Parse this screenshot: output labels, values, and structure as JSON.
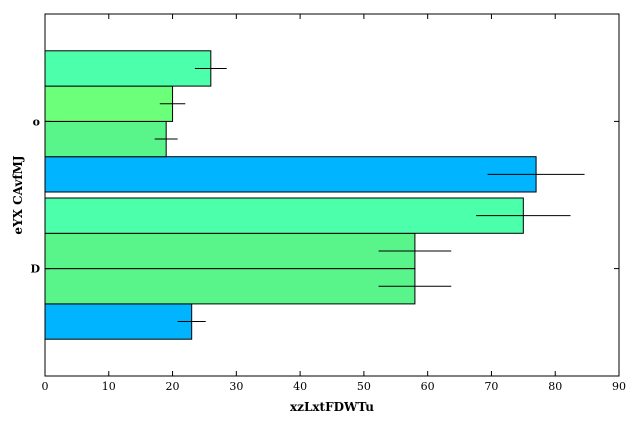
{
  "chart_data": {
    "type": "bar",
    "orientation": "horizontal",
    "xlabel": "xzLxtFDWTu",
    "ylabel": "eYX CAvfMJ",
    "xlim": [
      0,
      90
    ],
    "xticks": [
      0,
      10,
      20,
      30,
      40,
      50,
      60,
      70,
      80,
      90
    ],
    "groups": [
      {
        "label": "D",
        "bars": [
          {
            "value": 23,
            "error": 2.2,
            "color": "#00b4ff"
          },
          {
            "value": 58,
            "error": 5.7,
            "color": "#5af58a"
          },
          {
            "value": 58,
            "error": 5.7,
            "color": "#5af58a"
          },
          {
            "value": 75,
            "error": 7.4,
            "color": "#4cffab"
          }
        ]
      },
      {
        "label": "o",
        "bars": [
          {
            "value": 77,
            "error": 7.6,
            "color": "#00b4ff"
          },
          {
            "value": 19,
            "error": 1.8,
            "color": "#5af58a"
          },
          {
            "value": 20,
            "error": 2.0,
            "color": "#6cff7a"
          },
          {
            "value": 26,
            "error": 2.5,
            "color": "#4cffab"
          }
        ]
      }
    ]
  }
}
